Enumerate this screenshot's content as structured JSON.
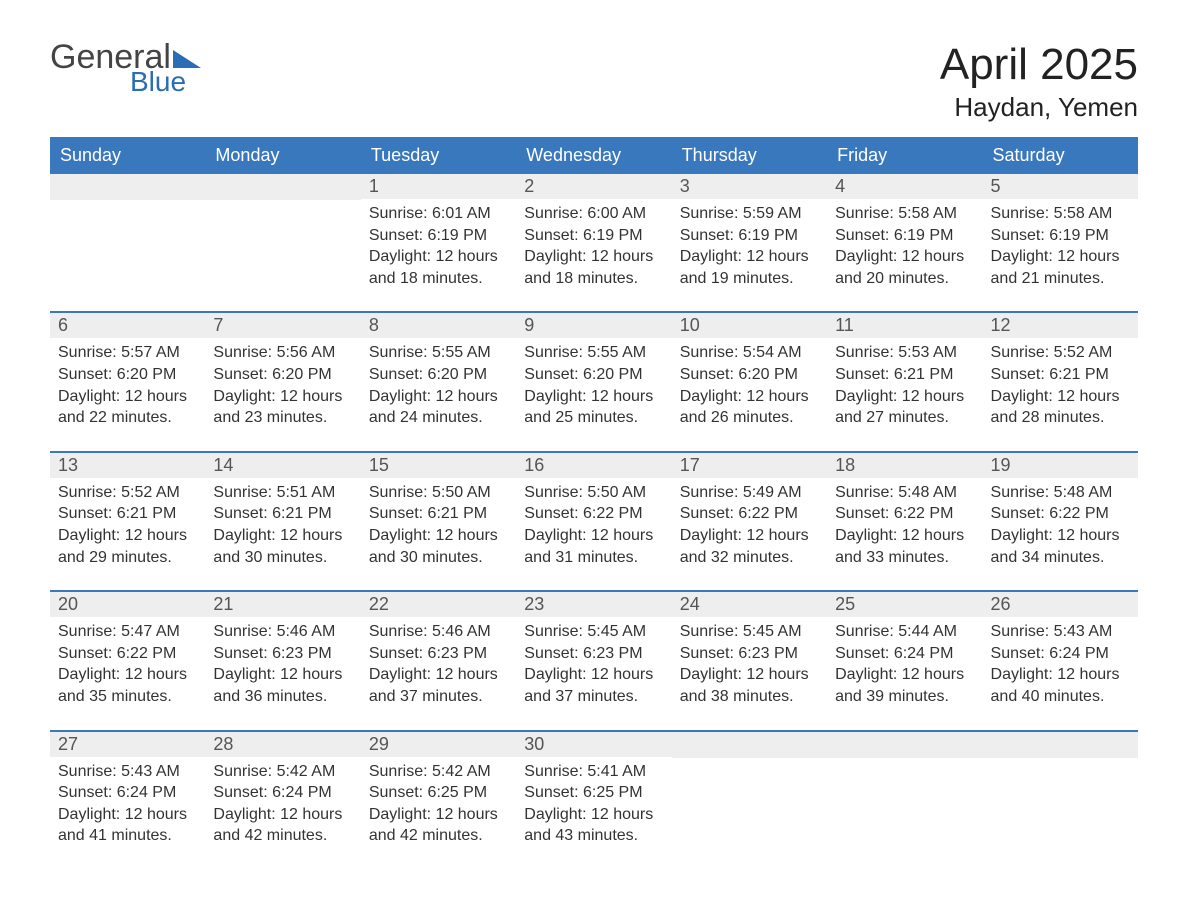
{
  "logo": {
    "word1": "General",
    "word2": "Blue"
  },
  "title": "April 2025",
  "location": "Haydan, Yemen",
  "colors": {
    "header_bg": "#3a78be",
    "header_text": "#ffffff",
    "daynum_bg": "#eeeeee",
    "row_border": "#3a78be",
    "logo_blue": "#2a6db5",
    "body_text": "#333333"
  },
  "day_labels": [
    "Sunday",
    "Monday",
    "Tuesday",
    "Wednesday",
    "Thursday",
    "Friday",
    "Saturday"
  ],
  "label_prefixes": {
    "sunrise": "Sunrise: ",
    "sunset": "Sunset: ",
    "daylight": "Daylight: "
  },
  "weeks": [
    [
      null,
      null,
      {
        "n": "1",
        "sunrise": "6:01 AM",
        "sunset": "6:19 PM",
        "daylight": "12 hours and 18 minutes."
      },
      {
        "n": "2",
        "sunrise": "6:00 AM",
        "sunset": "6:19 PM",
        "daylight": "12 hours and 18 minutes."
      },
      {
        "n": "3",
        "sunrise": "5:59 AM",
        "sunset": "6:19 PM",
        "daylight": "12 hours and 19 minutes."
      },
      {
        "n": "4",
        "sunrise": "5:58 AM",
        "sunset": "6:19 PM",
        "daylight": "12 hours and 20 minutes."
      },
      {
        "n": "5",
        "sunrise": "5:58 AM",
        "sunset": "6:19 PM",
        "daylight": "12 hours and 21 minutes."
      }
    ],
    [
      {
        "n": "6",
        "sunrise": "5:57 AM",
        "sunset": "6:20 PM",
        "daylight": "12 hours and 22 minutes."
      },
      {
        "n": "7",
        "sunrise": "5:56 AM",
        "sunset": "6:20 PM",
        "daylight": "12 hours and 23 minutes."
      },
      {
        "n": "8",
        "sunrise": "5:55 AM",
        "sunset": "6:20 PM",
        "daylight": "12 hours and 24 minutes."
      },
      {
        "n": "9",
        "sunrise": "5:55 AM",
        "sunset": "6:20 PM",
        "daylight": "12 hours and 25 minutes."
      },
      {
        "n": "10",
        "sunrise": "5:54 AM",
        "sunset": "6:20 PM",
        "daylight": "12 hours and 26 minutes."
      },
      {
        "n": "11",
        "sunrise": "5:53 AM",
        "sunset": "6:21 PM",
        "daylight": "12 hours and 27 minutes."
      },
      {
        "n": "12",
        "sunrise": "5:52 AM",
        "sunset": "6:21 PM",
        "daylight": "12 hours and 28 minutes."
      }
    ],
    [
      {
        "n": "13",
        "sunrise": "5:52 AM",
        "sunset": "6:21 PM",
        "daylight": "12 hours and 29 minutes."
      },
      {
        "n": "14",
        "sunrise": "5:51 AM",
        "sunset": "6:21 PM",
        "daylight": "12 hours and 30 minutes."
      },
      {
        "n": "15",
        "sunrise": "5:50 AM",
        "sunset": "6:21 PM",
        "daylight": "12 hours and 30 minutes."
      },
      {
        "n": "16",
        "sunrise": "5:50 AM",
        "sunset": "6:22 PM",
        "daylight": "12 hours and 31 minutes."
      },
      {
        "n": "17",
        "sunrise": "5:49 AM",
        "sunset": "6:22 PM",
        "daylight": "12 hours and 32 minutes."
      },
      {
        "n": "18",
        "sunrise": "5:48 AM",
        "sunset": "6:22 PM",
        "daylight": "12 hours and 33 minutes."
      },
      {
        "n": "19",
        "sunrise": "5:48 AM",
        "sunset": "6:22 PM",
        "daylight": "12 hours and 34 minutes."
      }
    ],
    [
      {
        "n": "20",
        "sunrise": "5:47 AM",
        "sunset": "6:22 PM",
        "daylight": "12 hours and 35 minutes."
      },
      {
        "n": "21",
        "sunrise": "5:46 AM",
        "sunset": "6:23 PM",
        "daylight": "12 hours and 36 minutes."
      },
      {
        "n": "22",
        "sunrise": "5:46 AM",
        "sunset": "6:23 PM",
        "daylight": "12 hours and 37 minutes."
      },
      {
        "n": "23",
        "sunrise": "5:45 AM",
        "sunset": "6:23 PM",
        "daylight": "12 hours and 37 minutes."
      },
      {
        "n": "24",
        "sunrise": "5:45 AM",
        "sunset": "6:23 PM",
        "daylight": "12 hours and 38 minutes."
      },
      {
        "n": "25",
        "sunrise": "5:44 AM",
        "sunset": "6:24 PM",
        "daylight": "12 hours and 39 minutes."
      },
      {
        "n": "26",
        "sunrise": "5:43 AM",
        "sunset": "6:24 PM",
        "daylight": "12 hours and 40 minutes."
      }
    ],
    [
      {
        "n": "27",
        "sunrise": "5:43 AM",
        "sunset": "6:24 PM",
        "daylight": "12 hours and 41 minutes."
      },
      {
        "n": "28",
        "sunrise": "5:42 AM",
        "sunset": "6:24 PM",
        "daylight": "12 hours and 42 minutes."
      },
      {
        "n": "29",
        "sunrise": "5:42 AM",
        "sunset": "6:25 PM",
        "daylight": "12 hours and 42 minutes."
      },
      {
        "n": "30",
        "sunrise": "5:41 AM",
        "sunset": "6:25 PM",
        "daylight": "12 hours and 43 minutes."
      },
      null,
      null,
      null
    ]
  ]
}
